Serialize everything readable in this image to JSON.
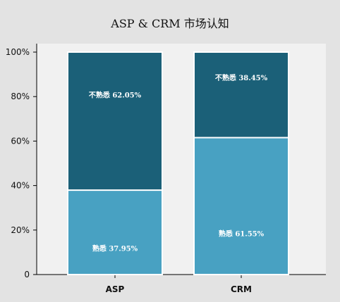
{
  "chart_data": {
    "type": "bar",
    "stacked": true,
    "title": "ASP & CRM 市场认知",
    "xlabel": "",
    "ylabel": "",
    "ylim": [
      0,
      100
    ],
    "y_ticks": [
      "0",
      "20%",
      "40%",
      "60%",
      "80%",
      "100%"
    ],
    "categories": [
      "ASP",
      "CRM"
    ],
    "series": [
      {
        "name": "熟悉",
        "values": [
          37.95,
          61.55
        ],
        "labels": [
          "熟悉 37.95%",
          "熟悉 61.55%"
        ],
        "color": "#48a1c2"
      },
      {
        "name": "不熟悉",
        "values": [
          62.05,
          38.45
        ],
        "labels": [
          "不熟悉 62.05%",
          "不熟悉 38.45%"
        ],
        "color": "#1b6078"
      }
    ],
    "grid": false,
    "plot_background": "#f1f1f1",
    "bar_edge_color": "#ffffff"
  }
}
